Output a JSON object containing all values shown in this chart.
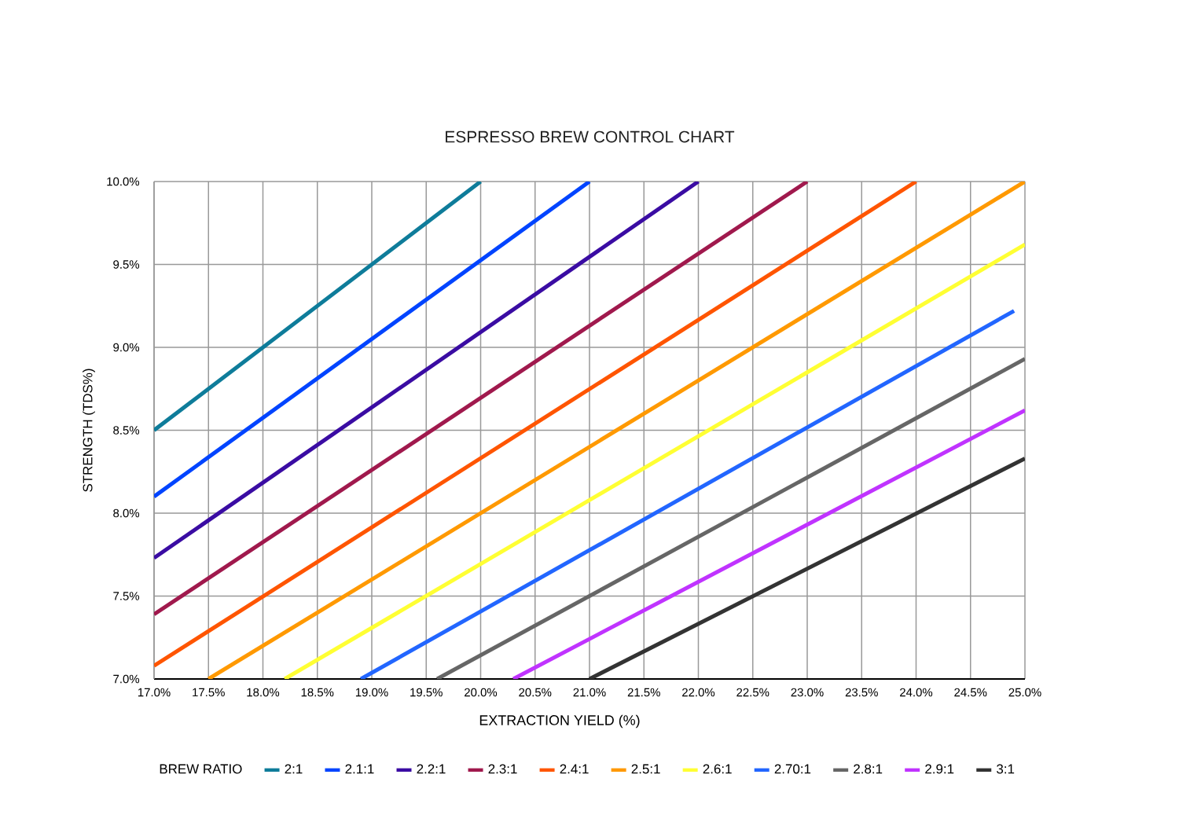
{
  "chart_data": {
    "type": "line",
    "title": "ESPRESSO BREW CONTROL CHART",
    "xlabel": "EXTRACTION YIELD (%)",
    "ylabel": "STRENGTH (TDS%)",
    "legend_title": "BREW RATIO",
    "xlim": [
      17,
      25
    ],
    "ylim": [
      7,
      10
    ],
    "xticks": [
      {
        "value": 17,
        "label": "17.0%"
      },
      {
        "value": 17.5,
        "label": "17.5%"
      },
      {
        "value": 18,
        "label": "18.0%"
      },
      {
        "value": 18.5,
        "label": "18.5%"
      },
      {
        "value": 19,
        "label": "19.0%"
      },
      {
        "value": 19.5,
        "label": "19.5%"
      },
      {
        "value": 20,
        "label": "20.0%"
      },
      {
        "value": 20.5,
        "label": "20.5%"
      },
      {
        "value": 21,
        "label": "21.0%"
      },
      {
        "value": 21.5,
        "label": "21.5%"
      },
      {
        "value": 22,
        "label": "22.0%"
      },
      {
        "value": 22.5,
        "label": "22.5%"
      },
      {
        "value": 23,
        "label": "23.0%"
      },
      {
        "value": 23.5,
        "label": "23.5%"
      },
      {
        "value": 24,
        "label": "24.0%"
      },
      {
        "value": 24.5,
        "label": "24.5%"
      },
      {
        "value": 25,
        "label": "25.0%"
      }
    ],
    "yticks": [
      {
        "value": 7,
        "label": "7.0%"
      },
      {
        "value": 7.5,
        "label": "7.5%"
      },
      {
        "value": 8,
        "label": "8.0%"
      },
      {
        "value": 8.5,
        "label": "8.5%"
      },
      {
        "value": 9,
        "label": "9.0%"
      },
      {
        "value": 9.5,
        "label": "9.5%"
      },
      {
        "value": 10,
        "label": "10.0%"
      }
    ],
    "grid": true,
    "legend": "bottom",
    "marker": "none",
    "line_style": "solid",
    "series": [
      {
        "name": "2:1",
        "color": "#0e7c9a",
        "x": [
          17,
          20
        ],
        "values": [
          8.5,
          10
        ]
      },
      {
        "name": "2.1:1",
        "color": "#0044ff",
        "x": [
          17,
          21
        ],
        "values": [
          8.1,
          10
        ]
      },
      {
        "name": "2.2:1",
        "color": "#3a0ca3",
        "x": [
          17,
          22
        ],
        "values": [
          7.73,
          10
        ]
      },
      {
        "name": "2.3:1",
        "color": "#a0194d",
        "x": [
          17,
          23
        ],
        "values": [
          7.39,
          10
        ]
      },
      {
        "name": "2.4:1",
        "color": "#ff5500",
        "x": [
          17,
          24
        ],
        "values": [
          7.08,
          10
        ]
      },
      {
        "name": "2.5:1",
        "color": "#ff9900",
        "x": [
          17.5,
          25
        ],
        "values": [
          7,
          10
        ]
      },
      {
        "name": "2.6:1",
        "color": "#ffff33",
        "x": [
          18.2,
          25
        ],
        "values": [
          7,
          9.62
        ]
      },
      {
        "name": "2.70:1",
        "color": "#2266ff",
        "x": [
          18.9,
          24.9
        ],
        "values": [
          7,
          9.22
        ]
      },
      {
        "name": "2.8:1",
        "color": "#666666",
        "x": [
          19.6,
          25
        ],
        "values": [
          7,
          8.93
        ]
      },
      {
        "name": "2.9:1",
        "color": "#c033ff",
        "x": [
          20.3,
          25
        ],
        "values": [
          7,
          8.62
        ]
      },
      {
        "name": "3:1",
        "color": "#333333",
        "x": [
          21,
          25
        ],
        "values": [
          7,
          8.33
        ]
      }
    ]
  }
}
